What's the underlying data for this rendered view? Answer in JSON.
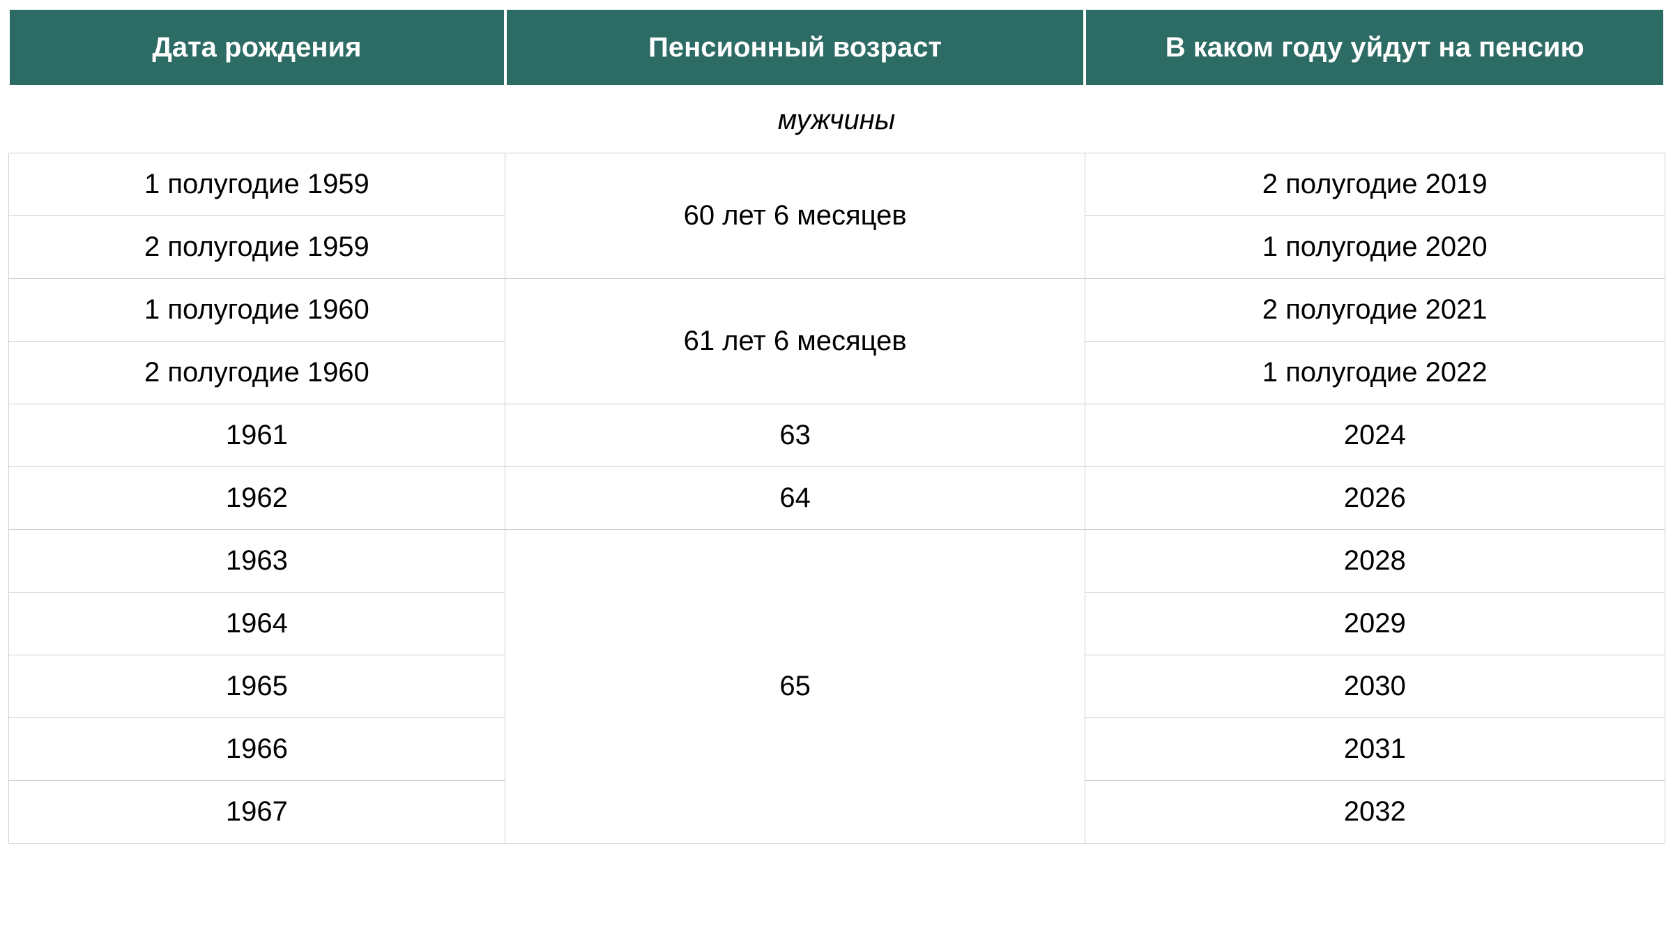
{
  "table": {
    "type": "table",
    "header_bg_color": "#2d6b65",
    "header_text_color": "#ffffff",
    "header_fontsize": 40,
    "header_fontweight": "bold",
    "cell_bg_color": "#ffffff",
    "cell_text_color": "#000000",
    "cell_fontsize": 40,
    "border_color": "#d0d0d0",
    "header_border_color": "#ffffff",
    "columns": [
      {
        "label": "Дата рождения",
        "width": "30%"
      },
      {
        "label": "Пенсионный возраст",
        "width": "35%"
      },
      {
        "label": "В каком году уйдут на пенсию",
        "width": "35%"
      }
    ],
    "section_title": "мужчины",
    "section_title_style": "italic",
    "rows": [
      {
        "birth": "1 полугодие 1959",
        "age": "60 лет 6 месяцев",
        "retire": "2 полугодие 2019",
        "age_rowspan": 2
      },
      {
        "birth": "2 полугодие 1959",
        "retire": "1 полугодие 2020"
      },
      {
        "birth": "1 полугодие 1960",
        "age": "61 лет 6 месяцев",
        "retire": "2 полугодие 2021",
        "age_rowspan": 2
      },
      {
        "birth": "2 полугодие 1960",
        "retire": "1 полугодие 2022"
      },
      {
        "birth": "1961",
        "age": "63",
        "retire": "2024",
        "age_rowspan": 1
      },
      {
        "birth": "1962",
        "age": "64",
        "retire": "2026",
        "age_rowspan": 1
      },
      {
        "birth": "1963",
        "age": "65",
        "retire": "2028",
        "age_rowspan": 5
      },
      {
        "birth": "1964",
        "retire": "2029"
      },
      {
        "birth": "1965",
        "retire": "2030"
      },
      {
        "birth": "1966",
        "retire": "2031"
      },
      {
        "birth": "1967",
        "retire": "2032"
      }
    ]
  }
}
